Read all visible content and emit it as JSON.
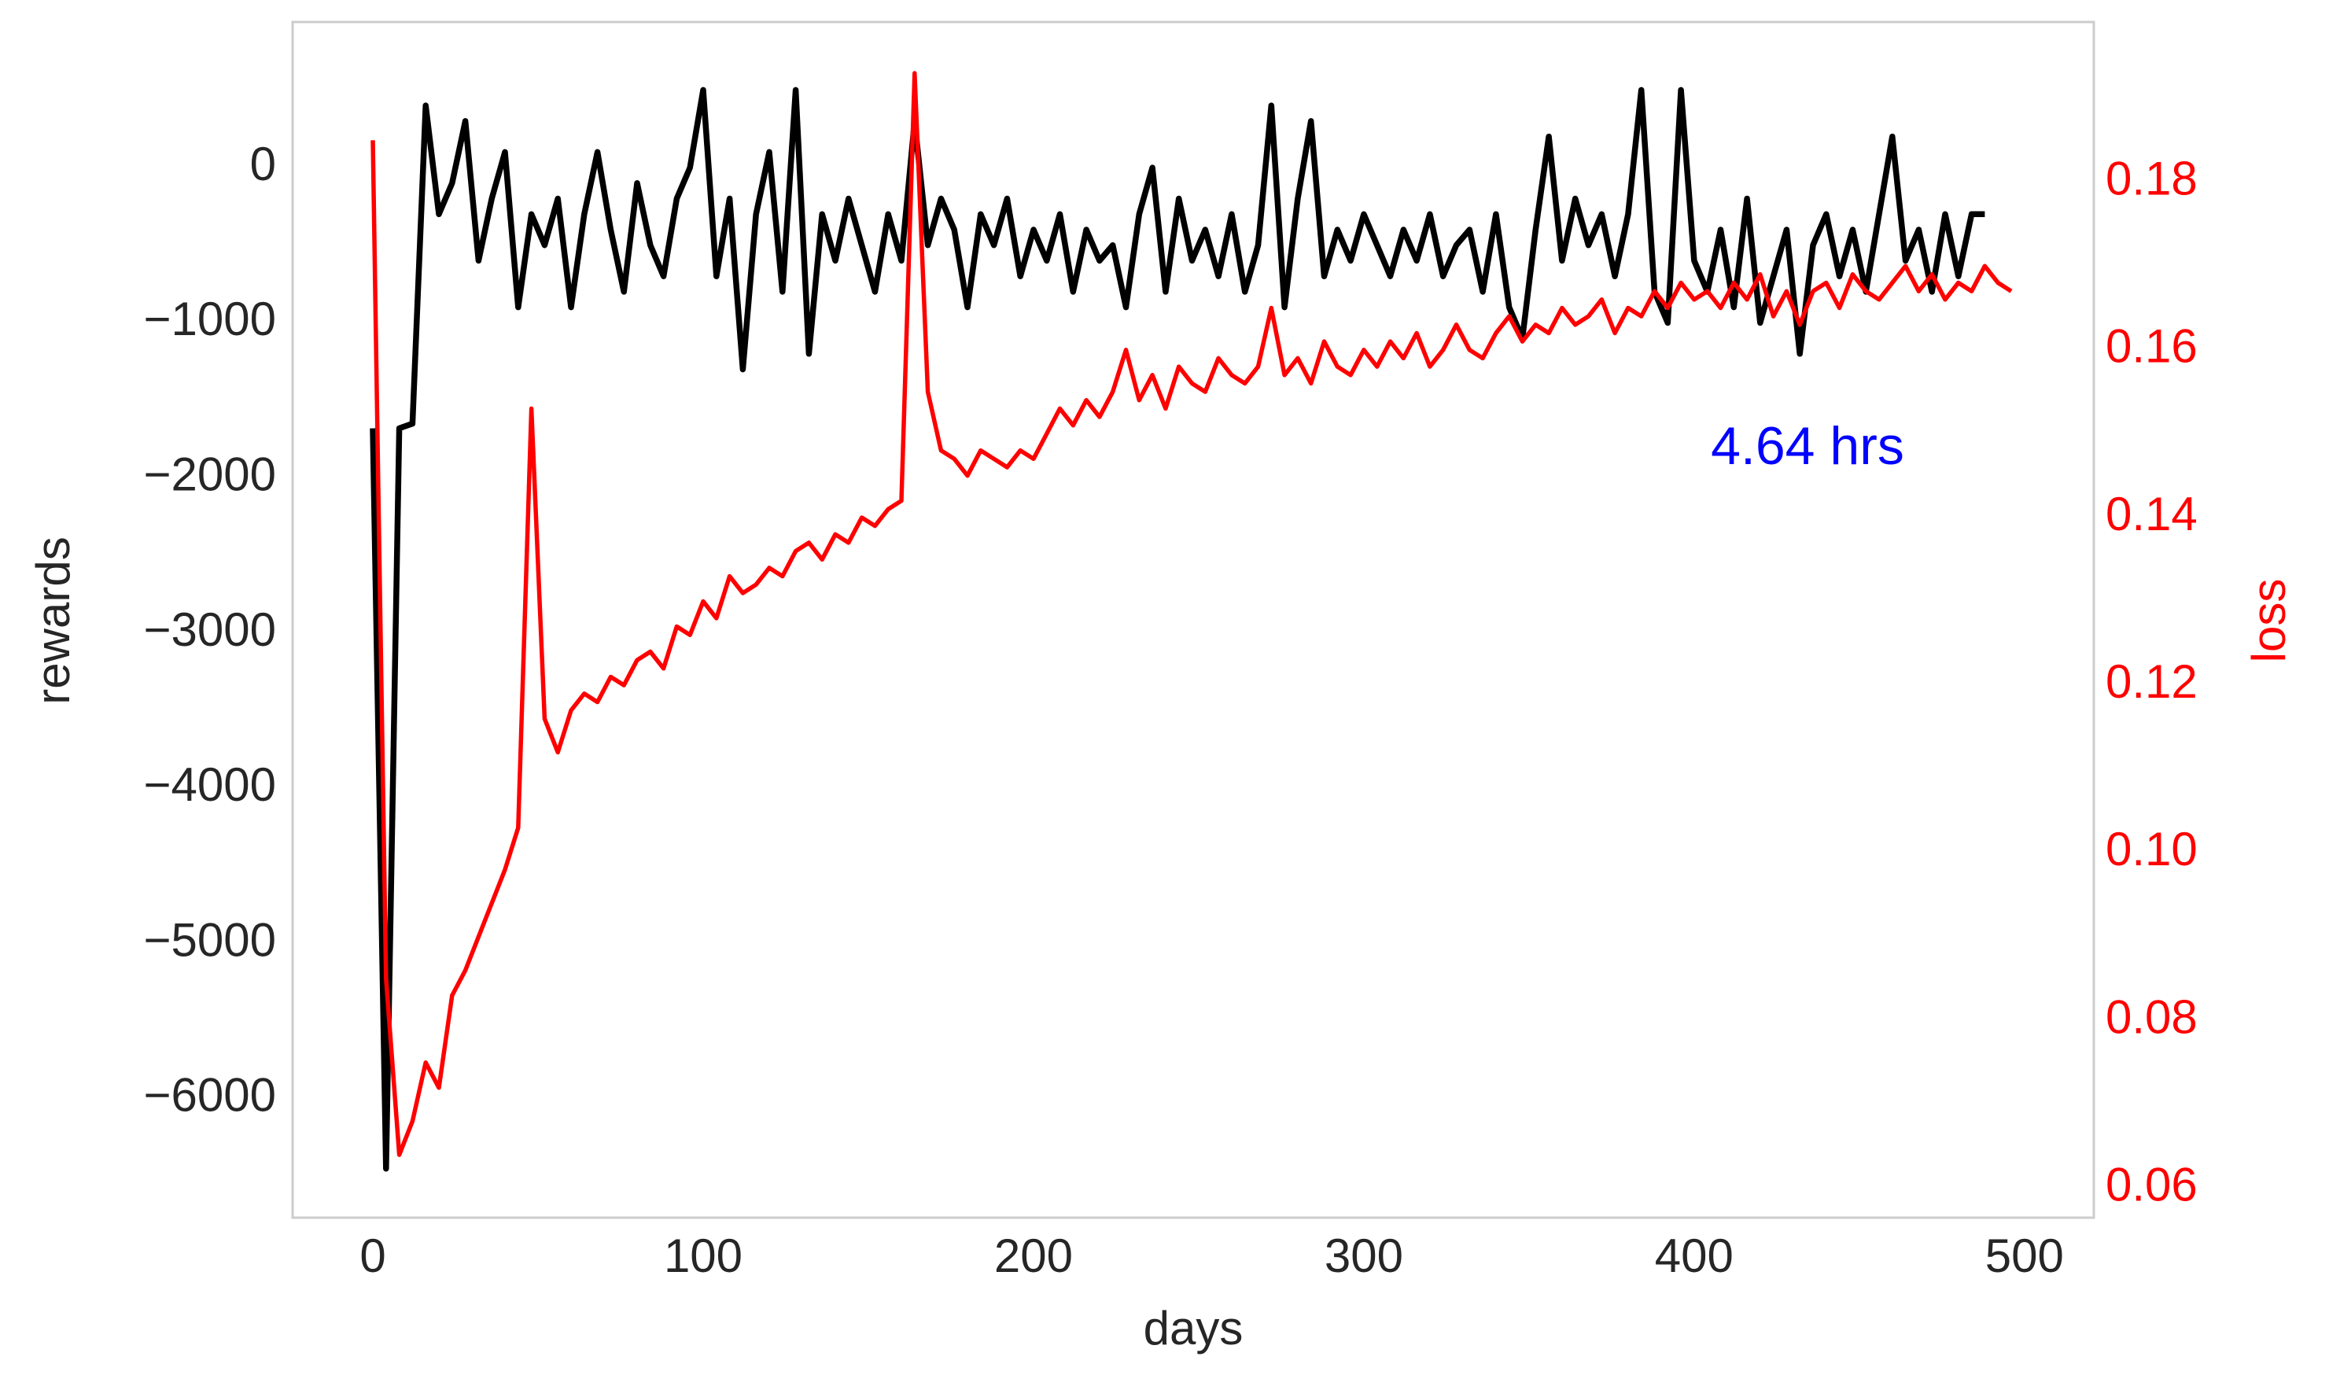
{
  "chart_data": {
    "type": "line",
    "xlabel": "days",
    "ylabel": "rewards",
    "y2label": "loss",
    "annotation": "4.64 hrs",
    "x": [
      0,
      4,
      8,
      12,
      16,
      20,
      24,
      28,
      32,
      36,
      40,
      44,
      48,
      52,
      56,
      60,
      64,
      68,
      72,
      76,
      80,
      84,
      88,
      92,
      96,
      100,
      104,
      108,
      112,
      116,
      120,
      124,
      128,
      132,
      136,
      140,
      144,
      148,
      152,
      156,
      160,
      164,
      168,
      172,
      176,
      180,
      184,
      188,
      192,
      196,
      200,
      204,
      208,
      212,
      216,
      220,
      224,
      228,
      232,
      236,
      240,
      244,
      248,
      252,
      256,
      260,
      264,
      268,
      272,
      276,
      280,
      284,
      288,
      292,
      296,
      300,
      304,
      308,
      312,
      316,
      320,
      324,
      328,
      332,
      336,
      340,
      344,
      348,
      352,
      356,
      360,
      364,
      368,
      372,
      376,
      380,
      384,
      388,
      392,
      396,
      400,
      404,
      408,
      412,
      416,
      420,
      424,
      428,
      432,
      436,
      440,
      444,
      448,
      452,
      456,
      460,
      464,
      468,
      472,
      476,
      480,
      484,
      488,
      492,
      496
    ],
    "series": [
      {
        "name": "rewards",
        "color": "#000000",
        "axis": "y",
        "values": [
          -1680,
          -6450,
          -1680,
          -1650,
          400,
          -300,
          -100,
          300,
          -600,
          -200,
          100,
          -900,
          -300,
          -500,
          -200,
          -900,
          -300,
          100,
          -400,
          -800,
          -100,
          -500,
          -700,
          -200,
          0,
          500,
          -700,
          -200,
          -1300,
          -300,
          100,
          -800,
          500,
          -1200,
          -300,
          -600,
          -200,
          -500,
          -800,
          -300,
          -600,
          300,
          -500,
          -200,
          -400,
          -900,
          -300,
          -500,
          -200,
          -700,
          -400,
          -600,
          -300,
          -800,
          -400,
          -600,
          -500,
          -900,
          -300,
          0,
          -800,
          -200,
          -600,
          -400,
          -700,
          -300,
          -800,
          -500,
          400,
          -900,
          -200,
          300,
          -700,
          -400,
          -600,
          -300,
          -500,
          -700,
          -400,
          -600,
          -300,
          -700,
          -500,
          -400,
          -800,
          -300,
          -900,
          -1100,
          -400,
          200,
          -600,
          -200,
          -500,
          -300,
          -700,
          -300,
          500,
          -800,
          -1000,
          500,
          -600,
          -800,
          -400,
          -900,
          -200,
          -1000,
          -700,
          -400,
          -1200,
          -500,
          -300,
          -700,
          -400,
          -800,
          -300,
          200,
          -600,
          -400,
          -800,
          -300,
          -700,
          -300,
          -300,
          null,
          null
        ]
      },
      {
        "name": "loss",
        "color": "#ff0000",
        "axis": "y2",
        "values": [
          0.185,
          0.085,
          0.064,
          0.068,
          0.075,
          0.072,
          0.083,
          0.086,
          0.09,
          0.094,
          0.098,
          0.103,
          0.153,
          0.116,
          0.112,
          0.117,
          0.119,
          0.118,
          0.121,
          0.12,
          0.123,
          0.124,
          0.122,
          0.127,
          0.126,
          0.13,
          0.128,
          0.133,
          0.131,
          0.132,
          0.134,
          0.133,
          0.136,
          0.137,
          0.135,
          0.138,
          0.137,
          0.14,
          0.139,
          0.141,
          0.142,
          0.193,
          0.155,
          0.148,
          0.147,
          0.145,
          0.148,
          0.147,
          0.146,
          0.148,
          0.147,
          0.15,
          0.153,
          0.151,
          0.154,
          0.152,
          0.155,
          0.16,
          0.154,
          0.157,
          0.153,
          0.158,
          0.156,
          0.155,
          0.159,
          0.157,
          0.156,
          0.158,
          0.165,
          0.157,
          0.159,
          0.156,
          0.161,
          0.158,
          0.157,
          0.16,
          0.158,
          0.161,
          0.159,
          0.162,
          0.158,
          0.16,
          0.163,
          0.16,
          0.159,
          0.162,
          0.164,
          0.161,
          0.163,
          0.162,
          0.165,
          0.163,
          0.164,
          0.166,
          0.162,
          0.165,
          0.164,
          0.167,
          0.165,
          0.168,
          0.166,
          0.167,
          0.165,
          0.168,
          0.166,
          0.169,
          0.164,
          0.167,
          0.163,
          0.167,
          0.168,
          0.165,
          0.169,
          0.167,
          0.166,
          0.168,
          0.17,
          0.167,
          0.169,
          0.166,
          0.168,
          0.167,
          0.17,
          0.168,
          0.167
        ]
      }
    ],
    "xlim": [
      -24.3,
      521
    ],
    "xticks": [
      0,
      100,
      200,
      300,
      400,
      500
    ],
    "ylim": [
      -6766,
      938
    ],
    "yticks": [
      {
        "value": -6000,
        "label": "−6000"
      },
      {
        "value": -5000,
        "label": "−5000"
      },
      {
        "value": -4000,
        "label": "−4000"
      },
      {
        "value": -3000,
        "label": "−3000"
      },
      {
        "value": -2000,
        "label": "−2000"
      },
      {
        "value": -1000,
        "label": "−1000"
      },
      0
    ],
    "y2lim": [
      0.0565,
      0.1991
    ],
    "y2ticks": [
      0.06,
      0.08,
      {
        "value": 0.1,
        "label": "0.10"
      },
      0.12,
      0.14,
      0.16,
      0.18
    ],
    "y2_color": "#ff0000",
    "annotation_color": "#0000ff",
    "grid": false
  }
}
